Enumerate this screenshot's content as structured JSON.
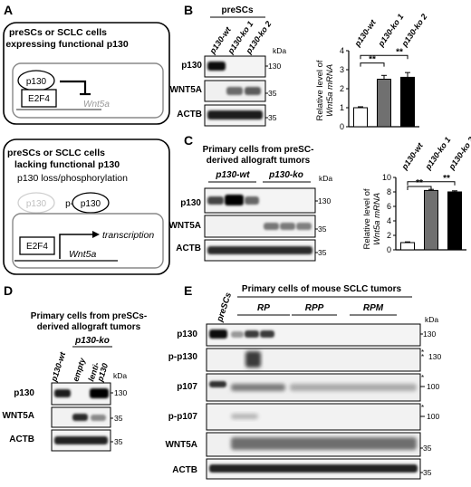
{
  "panel_labels": {
    "a": "A",
    "b": "B",
    "c": "C",
    "d": "D",
    "e": "E"
  },
  "panel_a": {
    "top": {
      "title_line1": "preSCs or SCLC cells",
      "title_line2": "expressing functional p130",
      "p130": "p130",
      "e2f4": "E2F4",
      "gene": "Wnt5a"
    },
    "bottom": {
      "title_line1": "preSCs or SCLC cells",
      "title_line2": "lacking functional p130",
      "subtitle": "p130 loss/phosphorylation",
      "p130_faded": "p130",
      "p_prefix": "p-",
      "p130": "p130",
      "e2f4": "E2F4",
      "transcription": "transcription",
      "gene": "Wnt5a"
    }
  },
  "panel_b": {
    "group_label": "preSCs",
    "lanes": [
      "p130-wt",
      "p130-ko 1",
      "p130-ko 2"
    ],
    "kda_label": "kDa",
    "rows": [
      {
        "label": "p130",
        "marker": "130"
      },
      {
        "label": "WNT5A",
        "marker": "35"
      },
      {
        "label": "ACTB",
        "marker": "35"
      }
    ]
  },
  "panel_c": {
    "title_line1": "Primary cells from preSC-",
    "title_line2": "derived allograft tumors",
    "group_wt": "p130-wt",
    "group_ko": "p130-ko",
    "kda_label": "kDa",
    "rows": [
      {
        "label": "p130",
        "marker": "130"
      },
      {
        "label": "WNT5A",
        "marker": "35"
      },
      {
        "label": "ACTB",
        "marker": "35"
      }
    ]
  },
  "panel_d": {
    "title_line1": "Primary cells from preSCs-",
    "title_line2": "derived allograft tumors",
    "group_ko": "p130-ko",
    "lanes": [
      "p130-wt",
      "empty",
      "lenti-",
      "p130"
    ],
    "kda_label": "kDa",
    "rows": [
      {
        "label": "p130",
        "marker": "130"
      },
      {
        "label": "WNT5A",
        "marker": "35"
      },
      {
        "label": "ACTB",
        "marker": "35"
      }
    ]
  },
  "panel_e": {
    "title": "Primary cells of mouse SCLC tumors",
    "ctrl_lane": "preSCs",
    "groups": [
      "RP",
      "RPP",
      "RPM"
    ],
    "kda_label": "kDa",
    "asterisk": "*",
    "rows": [
      {
        "label": "p130",
        "marker": "130"
      },
      {
        "label": "p-p130",
        "marker": "130"
      },
      {
        "label": "p107",
        "marker": "100"
      },
      {
        "label": "p-p107",
        "marker": "100"
      },
      {
        "label": "WNT5A",
        "marker": "35"
      },
      {
        "label": "ACTB",
        "marker": "35"
      }
    ]
  },
  "chart_data": [
    {
      "type": "bar",
      "panel": "B",
      "categories": [
        "p130-wt",
        "p130-ko 1",
        "p130-ko 2"
      ],
      "values": [
        1.0,
        2.5,
        2.6
      ],
      "errors": [
        0.05,
        0.2,
        0.25
      ],
      "colors": [
        "#ffffff",
        "#707070",
        "#000000"
      ],
      "ylabel_line1": "Relative level of",
      "ylabel_line2": "Wnt5a mRNA",
      "ylim": [
        0,
        4
      ],
      "yticks": [
        "0",
        "1",
        "2",
        "3",
        "4"
      ],
      "significance": [
        "**",
        "**"
      ]
    },
    {
      "type": "bar",
      "panel": "C",
      "categories": [
        "p130-wt",
        "p130-ko 1",
        "p130-ko 2"
      ],
      "values": [
        1.0,
        8.2,
        8.0
      ],
      "errors": [
        0.1,
        0.15,
        0.15
      ],
      "colors": [
        "#ffffff",
        "#707070",
        "#000000"
      ],
      "ylabel_line1": "Relative level of",
      "ylabel_line2": "Wnt5a mRNA",
      "ylim": [
        0,
        10
      ],
      "yticks": [
        "0",
        "2",
        "4",
        "6",
        "8",
        "10"
      ],
      "significance": [
        "**",
        "**"
      ]
    }
  ]
}
